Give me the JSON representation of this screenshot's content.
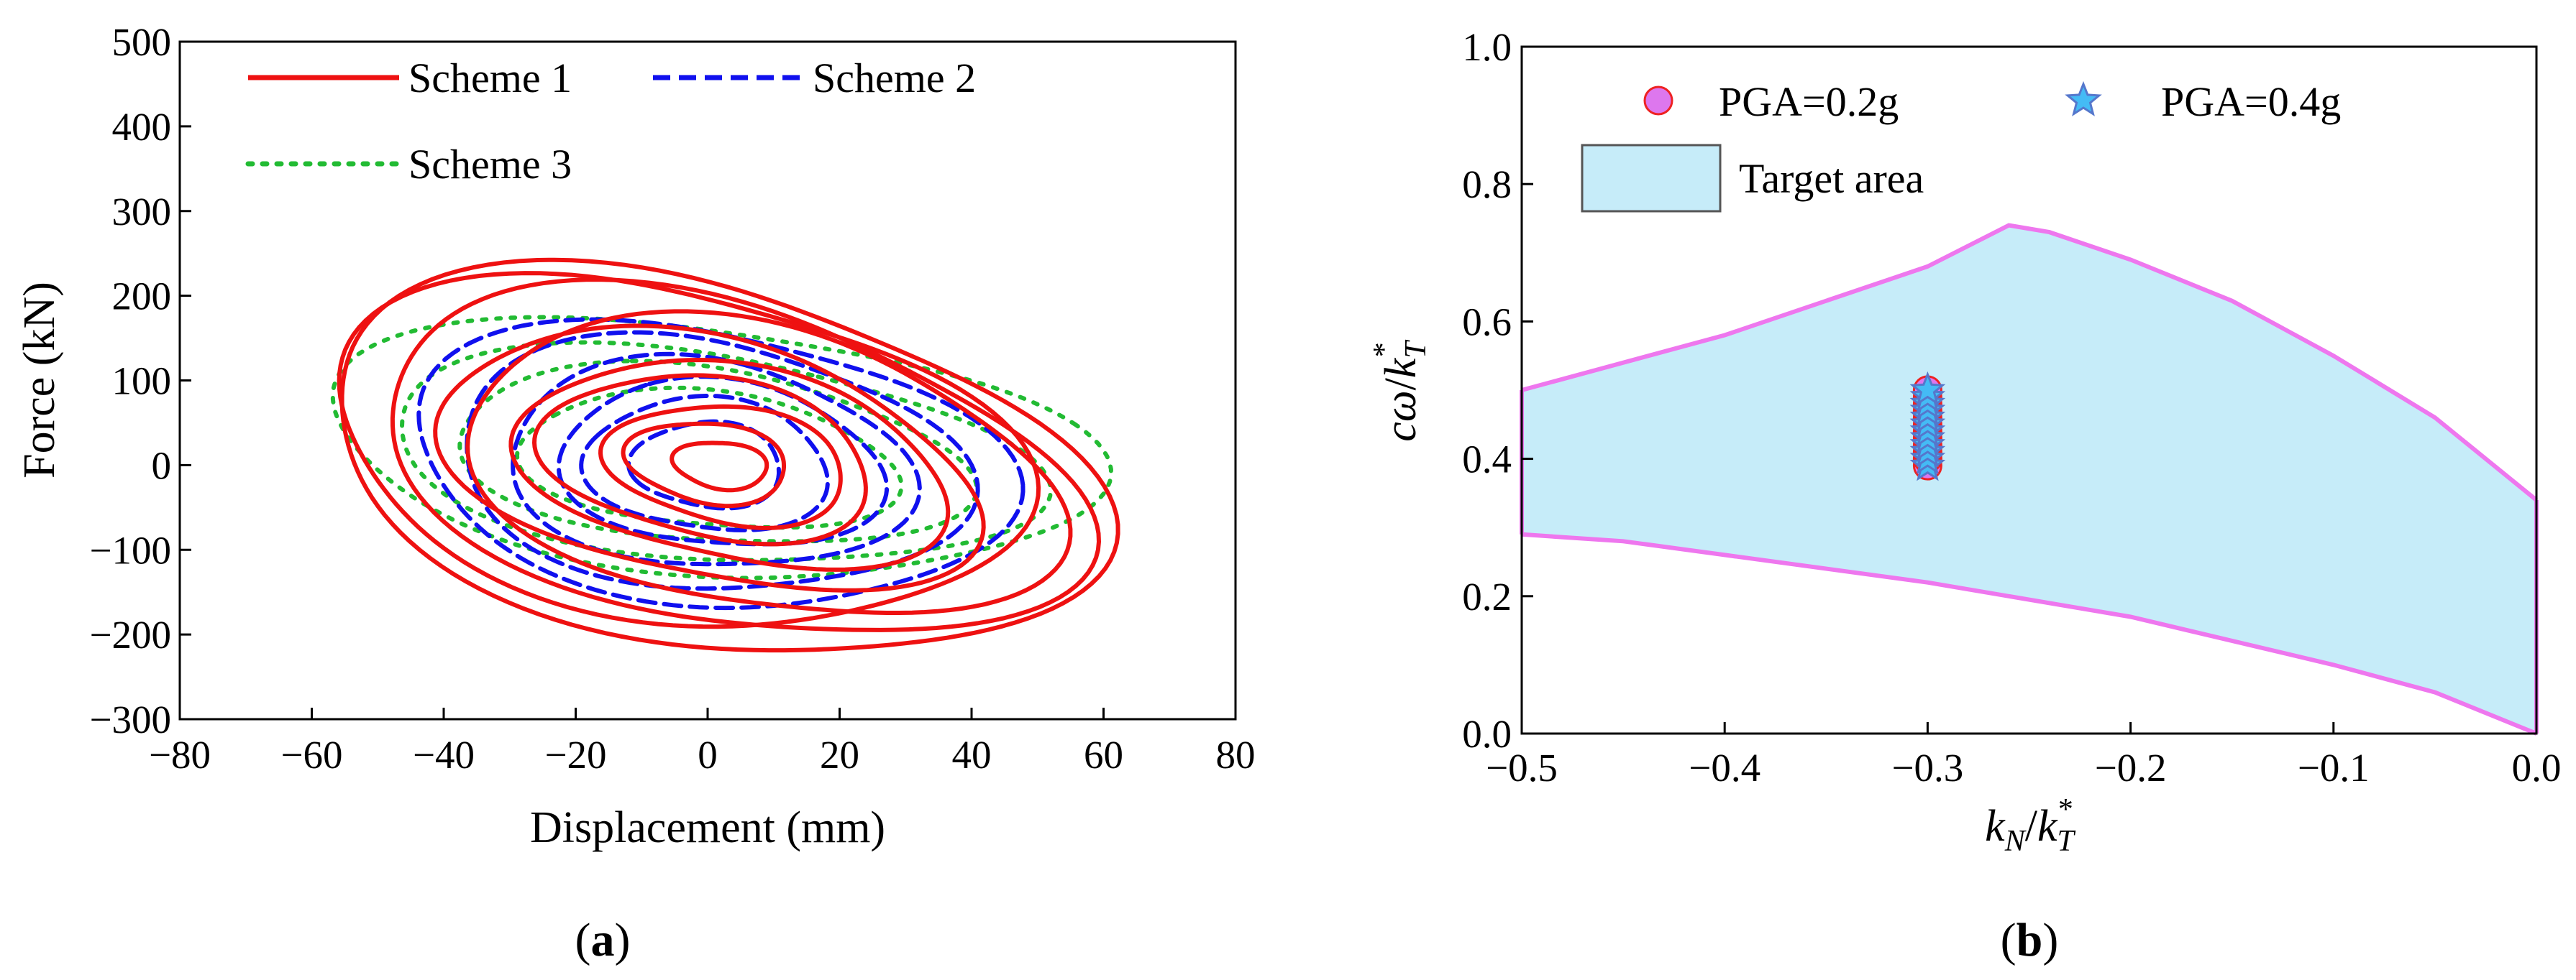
{
  "chart_data": [
    {
      "type": "line",
      "panel": "a",
      "caption_letter": "a",
      "xlabel": "Displacement (mm)",
      "ylabel": "Force (kN)",
      "xlim": [
        -80,
        80
      ],
      "ylim": [
        -300,
        500
      ],
      "xticks": [
        -80,
        -60,
        -40,
        -20,
        0,
        20,
        40,
        60,
        80
      ],
      "yticks": [
        -300,
        -200,
        -100,
        0,
        100,
        200,
        300,
        400,
        500
      ],
      "xtick_labels": [
        "−80",
        "−60",
        "−40",
        "−20",
        "0",
        "20",
        "40",
        "60",
        "80"
      ],
      "ytick_labels": [
        "−300",
        "−200",
        "−100",
        "0",
        "100",
        "200",
        "300",
        "400",
        "500"
      ],
      "legend_position": "top",
      "series": [
        {
          "name": "Scheme 1",
          "color": "#ee1111",
          "style": "solid",
          "loops": [
            {
              "cx": -5,
              "cy": 15,
              "a": 53,
              "b": 196,
              "angle": -0.42,
              "phase": 0.0
            },
            {
              "cx": 0,
              "cy": 0,
              "a": 60,
              "b": 212,
              "angle": -0.46,
              "phase": 0.6
            },
            {
              "cx": 3,
              "cy": 0,
              "a": 55,
              "b": 186,
              "angle": -0.48,
              "phase": 1.1
            },
            {
              "cx": 8,
              "cy": -5,
              "a": 46,
              "b": 165,
              "angle": -0.45,
              "phase": 1.7
            },
            {
              "cx": 0,
              "cy": 5,
              "a": 42,
              "b": 140,
              "angle": -0.45,
              "phase": 2.2
            },
            {
              "cx": 4,
              "cy": 0,
              "a": 33,
              "b": 115,
              "angle": -0.4,
              "phase": 2.8
            },
            {
              "cx": 0,
              "cy": 8,
              "a": 25,
              "b": 95,
              "angle": -0.4,
              "phase": 3.3
            },
            {
              "cx": 3,
              "cy": 0,
              "a": 18,
              "b": 70,
              "angle": -0.35,
              "phase": 3.9
            },
            {
              "cx": 0,
              "cy": 3,
              "a": 12,
              "b": 48,
              "angle": -0.35,
              "phase": 4.4
            },
            {
              "cx": 2,
              "cy": 0,
              "a": 7,
              "b": 28,
              "angle": -0.3,
              "phase": 5.0
            }
          ]
        },
        {
          "name": "Scheme 2",
          "color": "#1010ee",
          "style": "dashed",
          "loops": [
            {
              "cx": 0,
              "cy": 0,
              "a": 45,
              "b": 165,
              "angle": -0.32,
              "phase": 0.3
            },
            {
              "cx": 0,
              "cy": 0,
              "a": 38,
              "b": 150,
              "angle": -0.3,
              "phase": 1.0
            },
            {
              "cx": 0,
              "cy": 0,
              "a": 30,
              "b": 125,
              "angle": -0.3,
              "phase": 1.6
            },
            {
              "cx": 2,
              "cy": 0,
              "a": 24,
              "b": 100,
              "angle": -0.28,
              "phase": 2.3
            },
            {
              "cx": 0,
              "cy": 0,
              "a": 18,
              "b": 80,
              "angle": -0.28,
              "phase": 3.0
            },
            {
              "cx": 0,
              "cy": 0,
              "a": 11,
              "b": 52,
              "angle": -0.25,
              "phase": 3.7
            }
          ]
        },
        {
          "name": "Scheme 3",
          "color": "#22bb33",
          "style": "dotted",
          "loops": [
            {
              "cx": 0,
              "cy": 20,
              "a": 57,
              "b": 150,
              "angle": -0.18,
              "phase": 0.5
            },
            {
              "cx": 0,
              "cy": 10,
              "a": 48,
              "b": 125,
              "angle": -0.2,
              "phase": 1.3
            },
            {
              "cx": 0,
              "cy": 10,
              "a": 38,
              "b": 105,
              "angle": -0.2,
              "phase": 2.0
            },
            {
              "cx": 0,
              "cy": 5,
              "a": 28,
              "b": 82,
              "angle": -0.18,
              "phase": 2.7
            }
          ]
        }
      ]
    },
    {
      "type": "area",
      "panel": "b",
      "caption_letter": "b",
      "xlabel": "kN/kT*",
      "ylabel": "cω/kT*",
      "xlabel_parts": {
        "main": "k",
        "sub1": "N",
        "slash": "/",
        "main2": "k",
        "sub2": "T",
        "sup": "*"
      },
      "ylabel_parts": {
        "main": "cω",
        "slash": "/",
        "main2": "k",
        "sub": "T",
        "sup": "*"
      },
      "xlim": [
        -0.5,
        0.0
      ],
      "ylim": [
        0.0,
        1.0
      ],
      "xticks": [
        -0.5,
        -0.4,
        -0.3,
        -0.2,
        -0.1,
        0.0
      ],
      "yticks": [
        0.0,
        0.2,
        0.4,
        0.6,
        0.8,
        1.0
      ],
      "xtick_labels": [
        "−0.5",
        "−0.4",
        "−0.3",
        "−0.2",
        "−0.1",
        "0.0"
      ],
      "ytick_labels": [
        "0.0",
        "0.2",
        "0.4",
        "0.6",
        "0.8",
        "1.0"
      ],
      "target_area": {
        "name": "Target area",
        "fill": "#c6ecf9",
        "stroke": "#ee77ee",
        "upper": [
          [
            -0.5,
            0.5
          ],
          [
            -0.4,
            0.58
          ],
          [
            -0.3,
            0.68
          ],
          [
            -0.26,
            0.74
          ],
          [
            -0.24,
            0.73
          ],
          [
            -0.2,
            0.69
          ],
          [
            -0.15,
            0.63
          ],
          [
            -0.1,
            0.55
          ],
          [
            -0.05,
            0.46
          ],
          [
            0.0,
            0.34
          ]
        ],
        "lower": [
          [
            -0.5,
            0.29
          ],
          [
            -0.45,
            0.28
          ],
          [
            -0.4,
            0.26
          ],
          [
            -0.3,
            0.22
          ],
          [
            -0.2,
            0.17
          ],
          [
            -0.1,
            0.1
          ],
          [
            -0.05,
            0.06
          ],
          [
            0.0,
            0.0
          ]
        ]
      },
      "scatter_series": [
        {
          "name": "PGA=0.2g",
          "marker": "circle",
          "fill": "#dd77ee",
          "stroke": "#ee2222",
          "x": [
            -0.3,
            -0.3,
            -0.3,
            -0.3,
            -0.3,
            -0.3,
            -0.3,
            -0.3,
            -0.3,
            -0.3,
            -0.3,
            -0.3
          ],
          "y": [
            0.39,
            0.4,
            0.41,
            0.42,
            0.43,
            0.44,
            0.45,
            0.46,
            0.47,
            0.48,
            0.49,
            0.5
          ]
        },
        {
          "name": "PGA=0.4g",
          "marker": "star",
          "fill": "#44bbf5",
          "stroke": "#5577cc",
          "x": [
            -0.3,
            -0.3,
            -0.3,
            -0.3,
            -0.3,
            -0.3,
            -0.3,
            -0.3,
            -0.3,
            -0.3,
            -0.3,
            -0.3
          ],
          "y": [
            0.39,
            0.4,
            0.41,
            0.42,
            0.43,
            0.44,
            0.45,
            0.46,
            0.47,
            0.48,
            0.49,
            0.5
          ]
        }
      ]
    }
  ]
}
